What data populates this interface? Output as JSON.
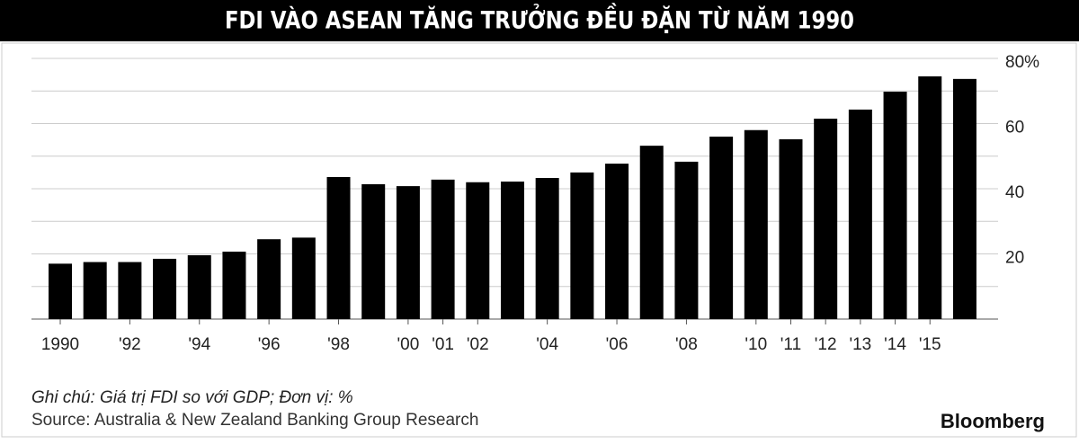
{
  "chart_data": {
    "type": "bar",
    "title": "FDI VÀO ASEAN TĂNG TRƯỞNG ĐỀU ĐẶN TỪ NĂM 1990",
    "categories": [
      "1990",
      null,
      "'92",
      null,
      "'94",
      null,
      "'96",
      null,
      "'98",
      null,
      "'00",
      "'01",
      "'02",
      null,
      "'04",
      null,
      "'06",
      null,
      "'08",
      null,
      "'10",
      "'11",
      "'12",
      "'13",
      "'14",
      "'15",
      null
    ],
    "values": [
      17,
      17.5,
      17.5,
      18.5,
      19.6,
      20.7,
      24.5,
      25,
      43.6,
      41.4,
      40.8,
      42.8,
      42,
      42.2,
      43.3,
      45,
      47.7,
      53.2,
      48.3,
      56,
      58,
      55.2,
      61.5,
      64.3,
      69.8,
      74.5,
      73.7
    ],
    "color": "#000000",
    "ylim": [
      0,
      80
    ],
    "yticks": [
      20,
      40,
      60,
      {
        "value": 80,
        "label": "80%"
      }
    ],
    "minor_yticks": [
      0,
      10,
      30,
      50,
      70
    ],
    "grid": true,
    "note": "Ghi chú: Giá trị FDI so với GDP; Đơn vị: %",
    "source": "Source: Australia & New Zealand Banking Group Research",
    "brand": "Bloomberg"
  }
}
